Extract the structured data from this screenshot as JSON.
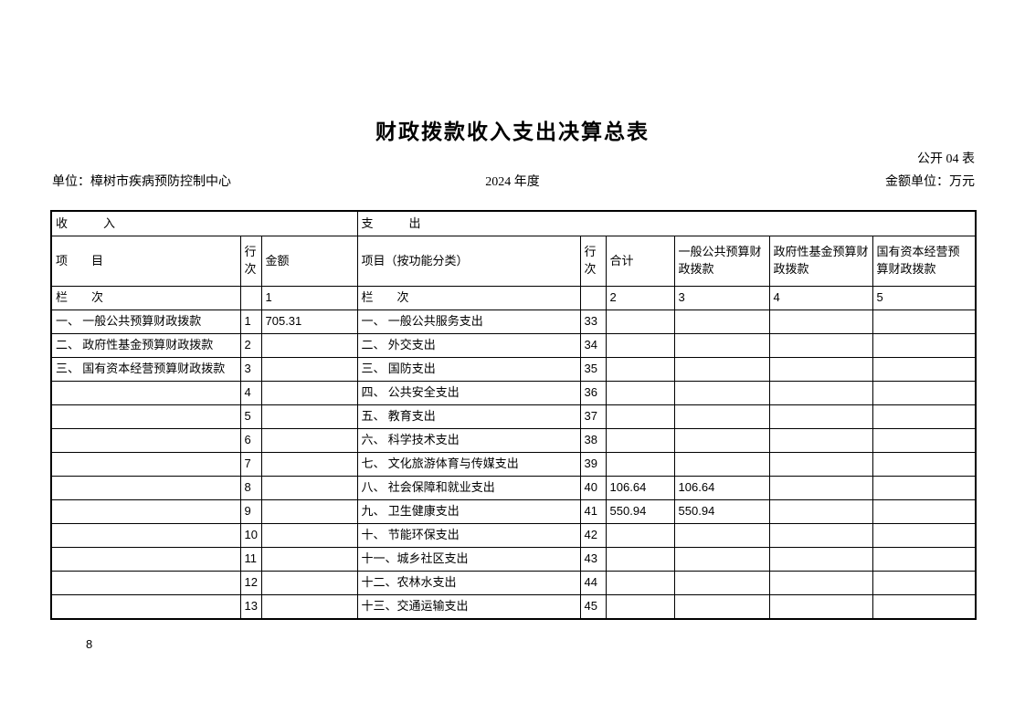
{
  "header": {
    "title": "财政拨款收入支出决算总表",
    "table_no": "公开 04 表",
    "unit": "单位：樟树市疾病预防控制中心",
    "year": "2024 年度",
    "amount_unit": "金额单位：万元"
  },
  "table": {
    "section_income": "收　　　入",
    "section_expense": "支　　　出",
    "column_keys": [
      "income-item",
      "income-line-no",
      "income-amount",
      "expense-item",
      "expense-line-no",
      "expense-total",
      "expense-general-public-budget",
      "expense-gov-fund-budget",
      "expense-state-capital-budget"
    ],
    "columns": [
      "项　　目",
      "行次",
      "金额",
      "项目（按功能分类）",
      "行次",
      "合计",
      "一般公共预算财政拨款",
      "政府性基金预算财政拨款",
      "国有资本经营预算财政拨款"
    ],
    "lanci_row": [
      "栏　　次",
      "",
      "1",
      "栏　　次",
      "",
      "2",
      "3",
      "4",
      "5"
    ],
    "rows": [
      [
        "一、 一般公共预算财政拨款",
        "1",
        "705.31",
        "一、 一般公共服务支出",
        "33",
        "",
        "",
        "",
        ""
      ],
      [
        "二、 政府性基金预算财政拨款",
        "2",
        "",
        "二、 外交支出",
        "34",
        "",
        "",
        "",
        ""
      ],
      [
        "三、 国有资本经营预算财政拨款",
        "3",
        "",
        "三、 国防支出",
        "35",
        "",
        "",
        "",
        ""
      ],
      [
        "",
        "4",
        "",
        "四、 公共安全支出",
        "36",
        "",
        "",
        "",
        ""
      ],
      [
        "",
        "5",
        "",
        "五、 教育支出",
        "37",
        "",
        "",
        "",
        ""
      ],
      [
        "",
        "6",
        "",
        "六、 科学技术支出",
        "38",
        "",
        "",
        "",
        ""
      ],
      [
        "",
        "7",
        "",
        "七、 文化旅游体育与传媒支出",
        "39",
        "",
        "",
        "",
        ""
      ],
      [
        "",
        "8",
        "",
        "八、 社会保障和就业支出",
        "40",
        "106.64",
        "106.64",
        "",
        ""
      ],
      [
        "",
        "9",
        "",
        "九、 卫生健康支出",
        "41",
        "550.94",
        "550.94",
        "",
        ""
      ],
      [
        "",
        "10",
        "",
        "十、 节能环保支出",
        "42",
        "",
        "",
        "",
        ""
      ],
      [
        "",
        "11",
        "",
        "十一、城乡社区支出",
        "43",
        "",
        "",
        "",
        ""
      ],
      [
        "",
        "12",
        "",
        "十二、农林水支出",
        "44",
        "",
        "",
        "",
        ""
      ],
      [
        "",
        "13",
        "",
        "十三、交通运输支出",
        "45",
        "",
        "",
        "",
        ""
      ]
    ]
  },
  "footer": {
    "page_number": "8"
  }
}
